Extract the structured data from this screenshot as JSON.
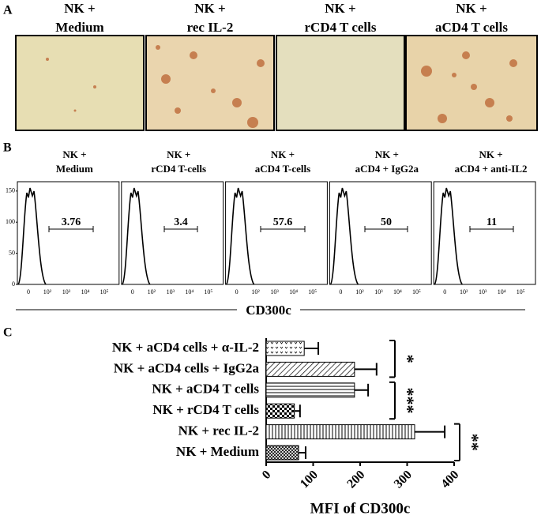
{
  "panel_a": {
    "label": "A",
    "images": [
      {
        "title": [
          "NK +",
          "Medium"
        ]
      },
      {
        "title": [
          "NK +",
          "rec IL-2"
        ]
      },
      {
        "title": [
          "NK +",
          "rCD4 T cells"
        ]
      },
      {
        "title": [
          "NK +",
          "aCD4 T cells"
        ]
      }
    ]
  },
  "panel_b": {
    "label": "B",
    "plots": [
      {
        "title": [
          "NK +",
          "Medium"
        ],
        "gate_value": 3.76
      },
      {
        "title": [
          "NK +",
          "rCD4 T-cells"
        ],
        "gate_value": 3.4
      },
      {
        "title": [
          "NK +",
          "aCD4 T-cells"
        ],
        "gate_value": 57.6
      },
      {
        "title": [
          "NK +",
          "aCD4 + IgG2a"
        ],
        "gate_value": 50
      },
      {
        "title": [
          "NK +",
          "aCD4 + anti-IL2"
        ],
        "gate_value": 11
      }
    ],
    "ylim": [
      0,
      165
    ],
    "yticks": [
      0,
      50,
      100,
      150
    ],
    "xtick_labels": [
      "0",
      "10²",
      "10³",
      "10⁴",
      "10⁵"
    ],
    "xlabel": "CD300c"
  },
  "chart_data": {
    "type": "bar",
    "orientation": "horizontal",
    "label": "C",
    "categories": [
      "NK + aCD4 cells + α-IL-2",
      "NK + aCD4 cells + IgG2a",
      "NK + aCD4 T cells",
      "NK + rCD4 T cells",
      "NK + rec IL-2",
      "NK + Medium"
    ],
    "values": [
      81,
      188,
      188,
      60,
      316,
      69
    ],
    "errors": [
      30,
      47,
      29,
      12,
      64,
      15
    ],
    "xlim": [
      0,
      400
    ],
    "xticks": [
      0,
      100,
      200,
      300,
      400
    ],
    "xlabel": "MFI of CD300c",
    "annotations": [
      "*",
      "***",
      "**"
    ]
  }
}
